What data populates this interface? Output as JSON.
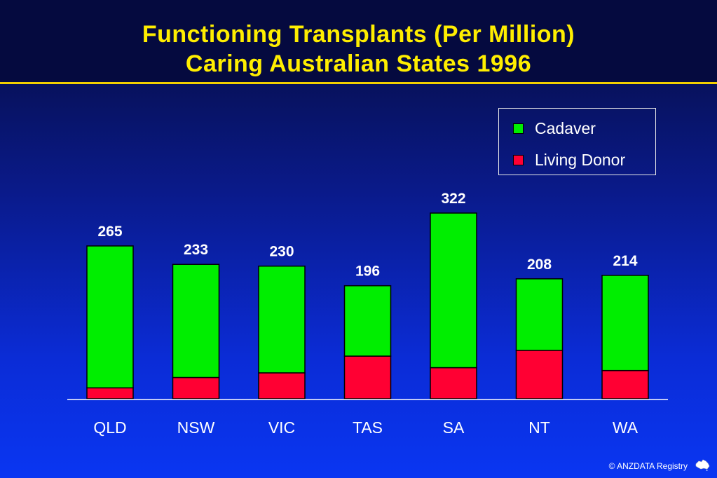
{
  "title_lines": [
    "Functioning Transplants (Per Million)",
    "Caring Australian States  1996"
  ],
  "footer": "© ANZDATA Registry",
  "legend": [
    {
      "label": "Cadaver",
      "color": "#00ee00"
    },
    {
      "label": "Living Donor",
      "color": "#ff0033"
    }
  ],
  "chart_data": {
    "type": "bar",
    "stacked": true,
    "categories": [
      "QLD",
      "NSW",
      "VIC",
      "TAS",
      "SA",
      "NT",
      "WA"
    ],
    "series": [
      {
        "name": "Living Donor",
        "color": "#ff0033",
        "values": [
          19,
          37,
          45,
          74,
          54,
          84,
          49
        ]
      },
      {
        "name": "Cadaver",
        "color": "#00ee00",
        "values": [
          246,
          196,
          185,
          122,
          268,
          124,
          165
        ]
      }
    ],
    "totals": [
      265,
      233,
      230,
      196,
      322,
      208,
      214
    ],
    "ylim": [
      0,
      350
    ],
    "grid": false,
    "legend_position": "top-right"
  }
}
